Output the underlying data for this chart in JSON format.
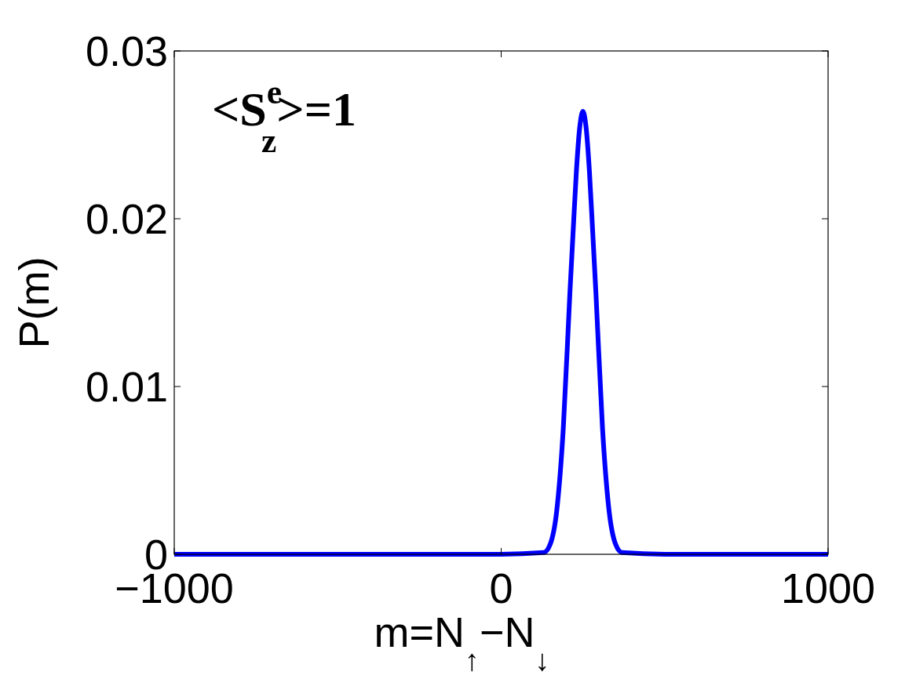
{
  "chart_data": {
    "type": "line",
    "xlabel": "m=N$_{↑}$−N$_{↓}$",
    "ylabel": "P(m)",
    "annotations": [
      "<S$^{e}$$_{z}$>=1"
    ],
    "x": [
      -1000,
      0,
      130,
      150,
      170,
      190,
      210,
      220,
      230,
      240,
      250,
      260,
      270,
      280,
      290,
      310,
      330,
      350,
      370,
      500,
      1000
    ],
    "series": [
      {
        "color": "#0000ff",
        "values": [
          0,
          0,
          0.0001,
          0.0006,
          0.0026,
          0.0075,
          0.0155,
          0.0192,
          0.0228,
          0.0254,
          0.0264,
          0.0254,
          0.0228,
          0.0192,
          0.0155,
          0.0075,
          0.0026,
          0.0006,
          0.0001,
          0,
          0
        ]
      }
    ],
    "xlim": [
      -1000,
      1000
    ],
    "xticks": [
      -1000,
      0,
      1000
    ],
    "ylim": [
      0,
      0.03
    ],
    "yticks": [
      0,
      0.01,
      0.02,
      0.03
    ],
    "grid": false,
    "marker": "none",
    "line_style": "solid"
  }
}
